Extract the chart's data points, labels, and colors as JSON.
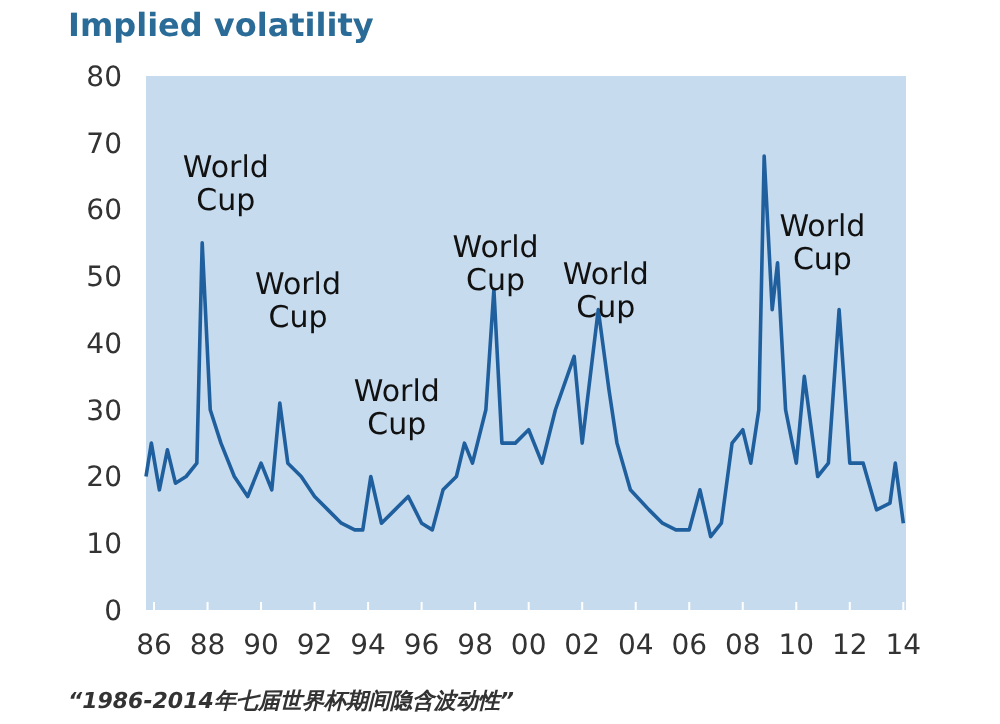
{
  "chart_data": {
    "type": "line",
    "title": "Implied volatility",
    "xlim": [
      1985.7,
      2014.1
    ],
    "ylim": [
      0,
      80
    ],
    "xticks": [
      {
        "value": 1986,
        "label": "86"
      },
      {
        "value": 1988,
        "label": "88"
      },
      {
        "value": 1990,
        "label": "90"
      },
      {
        "value": 1992,
        "label": "92"
      },
      {
        "value": 1994,
        "label": "94"
      },
      {
        "value": 1996,
        "label": "96"
      },
      {
        "value": 1998,
        "label": "98"
      },
      {
        "value": 2000,
        "label": "00"
      },
      {
        "value": 2002,
        "label": "02"
      },
      {
        "value": 2004,
        "label": "04"
      },
      {
        "value": 2006,
        "label": "06"
      },
      {
        "value": 2008,
        "label": "08"
      },
      {
        "value": 2010,
        "label": "10"
      },
      {
        "value": 2012,
        "label": "12"
      },
      {
        "value": 2014,
        "label": "14"
      }
    ],
    "yticks": [
      0,
      10,
      20,
      30,
      40,
      50,
      60,
      70,
      80
    ],
    "grid": false,
    "marker": "none",
    "line_style": "solid",
    "x": [
      1985.7,
      1985.9,
      1986.2,
      1986.5,
      1986.8,
      1987.2,
      1987.6,
      1987.8,
      1988.1,
      1988.5,
      1989,
      1989.5,
      1990,
      1990.4,
      1990.7,
      1991,
      1991.5,
      1992,
      1992.5,
      1993,
      1993.5,
      1993.8,
      1994.1,
      1994.5,
      1995,
      1995.5,
      1996,
      1996.4,
      1996.8,
      1997.3,
      1997.6,
      1997.9,
      1998.4,
      1998.7,
      1999,
      1999.5,
      2000,
      2000.5,
      2001,
      2001.7,
      2002,
      2002.6,
      2003,
      2003.3,
      2003.8,
      2004.5,
      2005,
      2005.5,
      2006,
      2006.4,
      2006.8,
      2007.2,
      2007.6,
      2008,
      2008.3,
      2008.6,
      2008.8,
      2009.1,
      2009.3,
      2009.6,
      2010,
      2010.3,
      2010.8,
      2011.2,
      2011.6,
      2012,
      2012.5,
      2013,
      2013.5,
      2013.7,
      2014
    ],
    "series": [
      {
        "color": "#1f5f9e",
        "values": [
          20,
          25,
          18,
          24,
          19,
          20,
          22,
          55,
          30,
          25,
          20,
          17,
          22,
          18,
          31,
          22,
          20,
          17,
          15,
          13,
          12,
          12,
          20,
          13,
          15,
          17,
          13,
          12,
          18,
          20,
          25,
          22,
          30,
          48,
          25,
          25,
          27,
          22,
          30,
          38,
          25,
          45,
          33,
          25,
          18,
          15,
          13,
          12,
          12,
          18,
          11,
          13,
          25,
          27,
          22,
          30,
          68,
          45,
          52,
          30,
          22,
          35,
          20,
          22,
          45,
          22,
          22,
          15,
          16,
          22,
          13
        ]
      }
    ],
    "annotations": [
      "World Cup",
      "World Cup",
      "World Cup",
      "World Cup",
      "World Cup",
      "World Cup",
      "“1986-2014年七届世界杯期间隐含波动性”"
    ]
  }
}
